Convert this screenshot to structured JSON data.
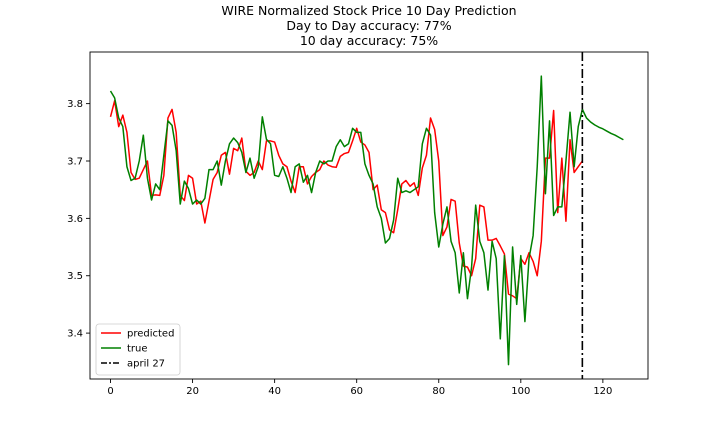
{
  "chart_data": {
    "type": "line",
    "title": "WIRE Normalized Stock Price 10 Day Prediction",
    "subtitle_lines": [
      "Day to Day accuracy: 77%",
      "10 day accuracy: 75%"
    ],
    "xlabel": "",
    "ylabel": "",
    "xlim": [
      -5,
      131
    ],
    "ylim": [
      3.32,
      3.89
    ],
    "x_ticks": [
      0,
      20,
      40,
      60,
      80,
      100,
      120
    ],
    "y_ticks": [
      3.4,
      3.5,
      3.6,
      3.7,
      3.8
    ],
    "legend_position": "lower-left",
    "series": [
      {
        "name": "predicted",
        "color": "#ff0000",
        "values": [
          3.777,
          3.805,
          3.76,
          3.78,
          3.75,
          3.68,
          3.668,
          3.67,
          3.685,
          3.7,
          3.64,
          3.641,
          3.64,
          3.675,
          3.775,
          3.79,
          3.75,
          3.64,
          3.631,
          3.675,
          3.67,
          3.625,
          3.63,
          3.592,
          3.63,
          3.668,
          3.68,
          3.71,
          3.715,
          3.677,
          3.722,
          3.718,
          3.74,
          3.682,
          3.675,
          3.68,
          3.7,
          3.685,
          3.735,
          3.735,
          3.733,
          3.71,
          3.695,
          3.69,
          3.665,
          3.645,
          3.69,
          3.69,
          3.66,
          3.673,
          3.68,
          3.685,
          3.7,
          3.693,
          3.69,
          3.689,
          3.708,
          3.713,
          3.715,
          3.735,
          3.757,
          3.733,
          3.728,
          3.715,
          3.65,
          3.658,
          3.615,
          3.61,
          3.58,
          3.575,
          3.615,
          3.66,
          3.666,
          3.656,
          3.662,
          3.64,
          3.688,
          3.71,
          3.775,
          3.755,
          3.7,
          3.57,
          3.585,
          3.633,
          3.63,
          3.557,
          3.517,
          3.515,
          3.5,
          3.53,
          3.623,
          3.62,
          3.562,
          3.562,
          3.565,
          3.552,
          3.538,
          3.468,
          3.465,
          3.46,
          3.53,
          3.52,
          3.54,
          3.525,
          3.5,
          3.56,
          3.705,
          3.705,
          3.788,
          3.61,
          3.705,
          3.595,
          3.737,
          3.68,
          3.69,
          3.7
        ]
      },
      {
        "name": "true",
        "color": "#008000",
        "values": [
          3.822,
          3.81,
          3.775,
          3.76,
          3.69,
          3.666,
          3.67,
          3.7,
          3.745,
          3.67,
          3.632,
          3.66,
          3.65,
          3.71,
          3.77,
          3.762,
          3.718,
          3.625,
          3.665,
          3.652,
          3.625,
          3.632,
          3.625,
          3.635,
          3.685,
          3.685,
          3.7,
          3.658,
          3.7,
          3.73,
          3.74,
          3.732,
          3.715,
          3.68,
          3.705,
          3.67,
          3.69,
          3.777,
          3.738,
          3.73,
          3.675,
          3.673,
          3.69,
          3.67,
          3.645,
          3.69,
          3.695,
          3.663,
          3.675,
          3.645,
          3.68,
          3.7,
          3.695,
          3.7,
          3.7,
          3.725,
          3.737,
          3.725,
          3.73,
          3.757,
          3.75,
          3.75,
          3.695,
          3.675,
          3.66,
          3.62,
          3.6,
          3.557,
          3.565,
          3.597,
          3.67,
          3.645,
          3.648,
          3.645,
          3.65,
          3.655,
          3.73,
          3.757,
          3.745,
          3.61,
          3.55,
          3.59,
          3.62,
          3.56,
          3.54,
          3.47,
          3.54,
          3.46,
          3.515,
          3.623,
          3.56,
          3.54,
          3.475,
          3.56,
          3.53,
          3.39,
          3.535,
          3.345,
          3.55,
          3.45,
          3.535,
          3.42,
          3.53,
          3.57,
          3.69,
          3.848,
          3.643,
          3.77,
          3.605,
          3.62,
          3.62,
          3.7,
          3.785,
          3.69,
          3.76,
          3.79
        ]
      },
      {
        "name": "april 27",
        "color": "#000000",
        "style": "dashdot",
        "x": [
          115,
          115
        ]
      },
      {
        "name": "",
        "color": "#008000",
        "x": [
          115,
          116,
          117,
          118,
          119,
          120,
          121,
          122,
          123,
          124,
          125
        ],
        "values": [
          3.79,
          3.775,
          3.768,
          3.763,
          3.759,
          3.756,
          3.752,
          3.748,
          3.745,
          3.741,
          3.737
        ]
      }
    ]
  }
}
